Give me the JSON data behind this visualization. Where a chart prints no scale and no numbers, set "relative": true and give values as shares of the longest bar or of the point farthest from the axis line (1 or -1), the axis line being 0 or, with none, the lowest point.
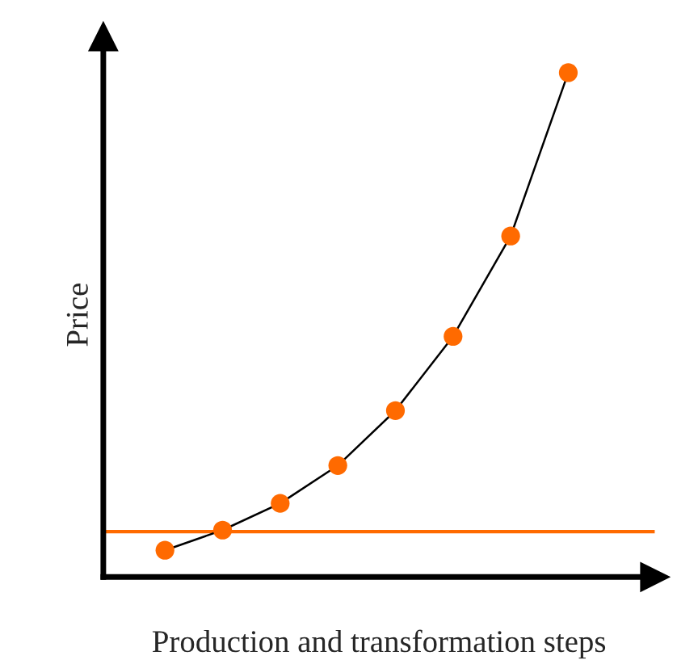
{
  "chart_data": {
    "type": "line",
    "relative": true,
    "xlabel": "Production and transformation steps",
    "ylabel": "Price",
    "categories": [
      null,
      null,
      null,
      null,
      null,
      null,
      null,
      null
    ],
    "series": [
      {
        "color": "#000000",
        "marker": "circle",
        "line_style": "solid",
        "colors": [
          "#ff6a00",
          "#ff6a00",
          "#ff6a00",
          "#ff6a00",
          "#ff6a00",
          "#ff6a00",
          "#ff6a00",
          "#ff6a00"
        ],
        "values": [
          0.053,
          0.093,
          0.146,
          0.221,
          0.33,
          0.477,
          0.676,
          1
        ]
      }
    ],
    "ref_lines": [
      {
        "axis": "y",
        "value": 0.09,
        "color": "#ff6a00"
      }
    ],
    "grid": false,
    "legend": false
  }
}
